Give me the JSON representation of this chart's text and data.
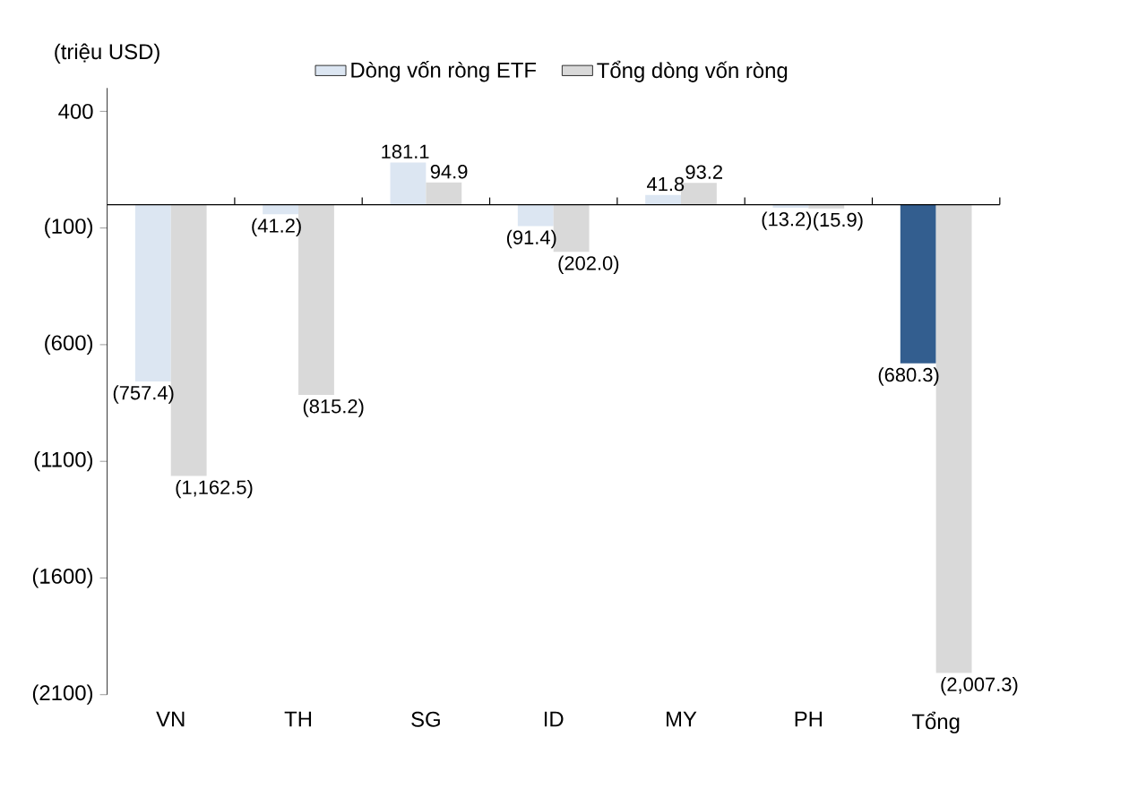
{
  "chart_data": {
    "type": "bar",
    "ylabel": "(triệu USD)",
    "categories": [
      "VN",
      "TH",
      "SG",
      "ID",
      "MY",
      "PH",
      "Tổng"
    ],
    "series": [
      {
        "name": "Dòng vốn ròng ETF",
        "color": "#dce6f2",
        "colors": [
          "#dce6f2",
          "#dce6f2",
          "#dce6f2",
          "#dce6f2",
          "#dce6f2",
          "#dce6f2",
          "#335e8f"
        ],
        "values": [
          -757.4,
          -41.2,
          181.1,
          -91.4,
          41.8,
          -13.2,
          -680.3
        ],
        "value_labels": [
          "(757.4)",
          "(41.2)",
          "181.1",
          "(91.4)",
          "41.8",
          "(13.2)",
          "(680.3)"
        ]
      },
      {
        "name": "Tổng dòng vốn ròng",
        "color": "#d9d9d9",
        "values": [
          -1162.5,
          -815.2,
          94.9,
          -202.0,
          93.2,
          -15.9,
          -2007.3
        ],
        "value_labels": [
          "(1,162.5)",
          "(815.2)",
          "94.9",
          "(202.0)",
          "93.2",
          "(15.9)",
          "(2,007.3)"
        ]
      }
    ],
    "ylim": [
      -2100,
      500
    ],
    "yticks": [
      {
        "value": 400,
        "label": "400"
      },
      {
        "value": -100,
        "label": "(100)"
      },
      {
        "value": -600,
        "label": "(600)"
      },
      {
        "value": -1100,
        "label": "(1100)"
      },
      {
        "value": -1600,
        "label": "(1600)"
      },
      {
        "value": -2100,
        "label": "(2100)"
      }
    ],
    "legend": "top"
  }
}
